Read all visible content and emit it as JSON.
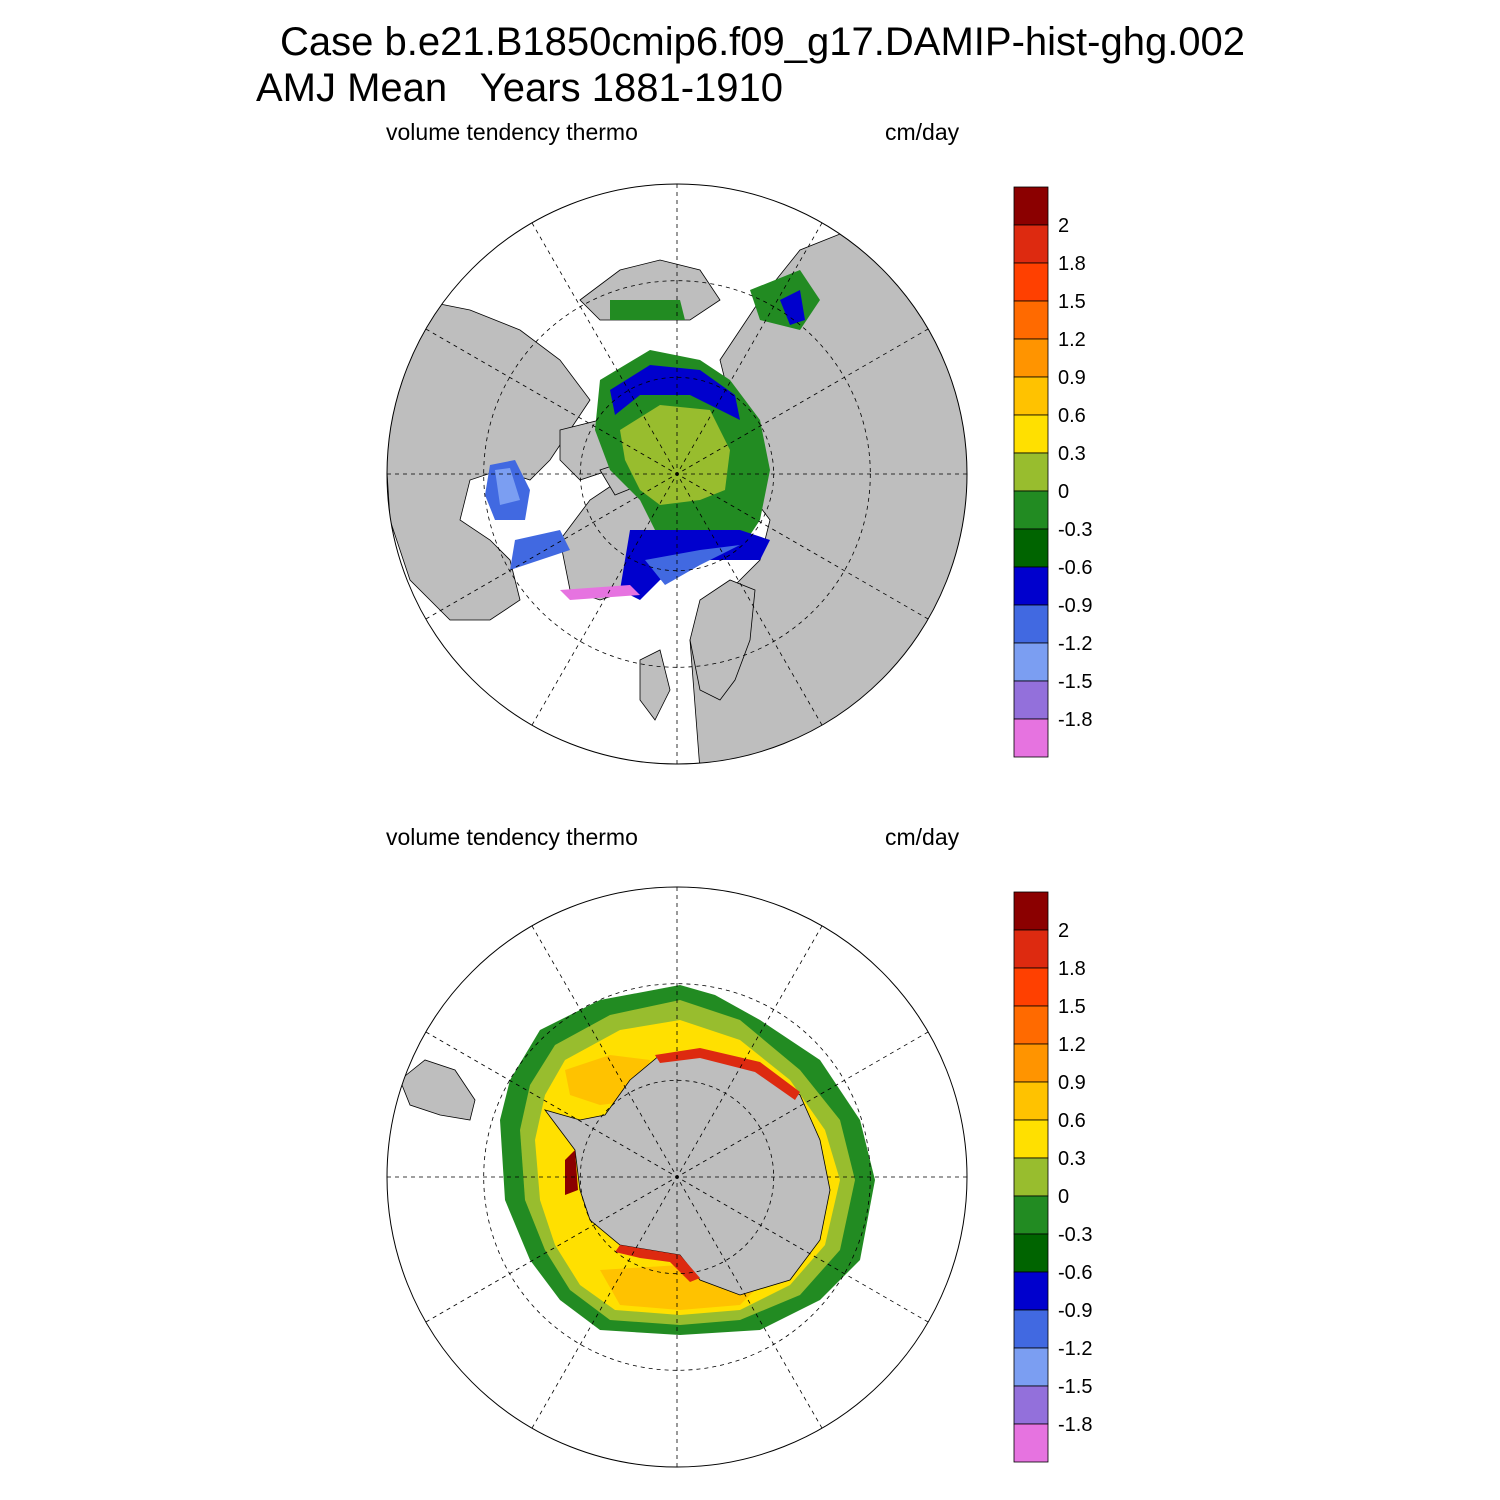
{
  "header": {
    "case_line": "Case b.e21.B1850cmip6.f09_g17.DAMIP-hist-ghg.002",
    "period_line": "AMJ Mean   Years 1881-1910"
  },
  "panels": [
    {
      "id": "north",
      "hemisphere": "Arctic (north polar stereographic)",
      "variable_label": "volume tendency thermo",
      "units_label": "cm/day"
    },
    {
      "id": "south",
      "hemisphere": "Antarctic (south polar stereographic)",
      "variable_label": "volume tendency thermo",
      "units_label": "cm/day"
    }
  ],
  "colorbar": {
    "labels": [
      "2",
      "1.8",
      "1.5",
      "1.2",
      "0.9",
      "0.6",
      "0.3",
      "0",
      "-0.3",
      "-0.6",
      "-0.9",
      "-1.2",
      "-1.5",
      "-1.8"
    ],
    "colors_top_to_bottom": [
      "#8b0000",
      "#dd2a10",
      "#ff4000",
      "#ff6a00",
      "#ff9400",
      "#ffc200",
      "#ffe000",
      "#98bd2e",
      "#228b22",
      "#006400",
      "#0000cd",
      "#4169e1",
      "#7b9ef2",
      "#9370db",
      "#e673e0"
    ]
  },
  "colors": {
    "land": "#bebebe",
    "background": "#ffffff",
    "grid": "#000000"
  }
}
